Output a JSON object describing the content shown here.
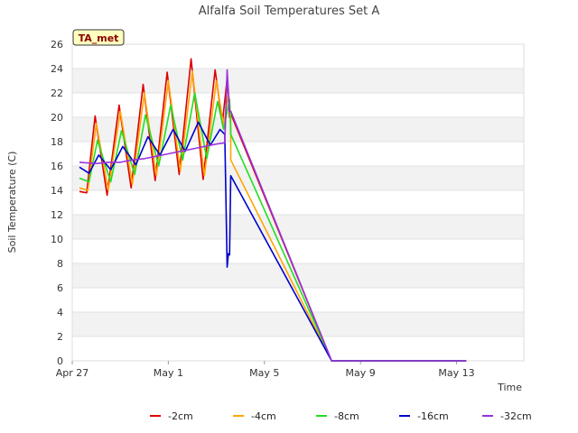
{
  "chart_data": {
    "type": "line",
    "title": "Alfalfa Soil Temperatures Set A",
    "xlabel": "Time",
    "ylabel": "Soil Temperature (C)",
    "badge": "TA_met",
    "ylim": [
      0,
      26
    ],
    "xlim": [
      0,
      18.8
    ],
    "yticks": [
      0,
      2,
      4,
      6,
      8,
      10,
      12,
      14,
      16,
      18,
      20,
      22,
      24,
      26
    ],
    "xticks": [
      {
        "value": 0,
        "label": "Apr 27"
      },
      {
        "value": 4,
        "label": "May 1"
      },
      {
        "value": 8,
        "label": "May 5"
      },
      {
        "value": 12,
        "label": "May 9"
      },
      {
        "value": 16,
        "label": "May 13"
      }
    ],
    "colors": {
      "-2cm": "#dd0000",
      "-4cm": "#ffa500",
      "-8cm": "#22dd22",
      "-16cm": "#0000cc",
      "-32cm": "#9933dd"
    },
    "series": [
      {
        "name": "-2cm",
        "x": [
          0.3,
          0.6,
          0.95,
          1.45,
          1.95,
          2.45,
          2.95,
          3.45,
          3.95,
          4.45,
          4.95,
          5.45,
          5.95,
          6.25,
          6.45,
          6.55,
          6.6,
          6.6,
          10.8,
          16.4
        ],
        "y": [
          13.9,
          13.8,
          20.1,
          13.6,
          21.0,
          14.2,
          22.7,
          14.8,
          23.7,
          15.3,
          24.8,
          14.9,
          23.9,
          19.5,
          23.2,
          20.0,
          20.5,
          20.3,
          0,
          0
        ]
      },
      {
        "name": "-4cm",
        "x": [
          0.3,
          0.65,
          1.0,
          1.5,
          2.0,
          2.5,
          3.0,
          3.5,
          4.0,
          4.5,
          5.0,
          5.5,
          6.0,
          6.3,
          6.5,
          6.6,
          6.6,
          10.8,
          16.4
        ],
        "y": [
          14.2,
          14.0,
          19.5,
          14.0,
          20.5,
          14.5,
          22.0,
          15.2,
          23.0,
          15.6,
          23.8,
          15.2,
          23.0,
          19.3,
          22.0,
          20.0,
          16.5,
          0,
          0
        ]
      },
      {
        "name": "-8cm",
        "x": [
          0.3,
          0.7,
          1.05,
          1.6,
          2.05,
          2.6,
          3.05,
          3.6,
          4.1,
          4.6,
          5.1,
          5.6,
          6.05,
          6.3,
          6.55,
          6.6,
          6.6,
          10.8,
          16.4
        ],
        "y": [
          15.0,
          14.7,
          18.1,
          14.7,
          18.9,
          15.3,
          20.2,
          16.0,
          21.0,
          16.5,
          22.0,
          16.6,
          21.3,
          19.0,
          21.5,
          18.8,
          18.6,
          0,
          0
        ]
      },
      {
        "name": "-16cm",
        "x": [
          0.3,
          0.7,
          1.1,
          1.6,
          2.1,
          2.65,
          3.15,
          3.65,
          4.2,
          4.7,
          5.25,
          5.75,
          6.15,
          6.35,
          6.45,
          6.5,
          6.55,
          6.6,
          6.6,
          10.8,
          16.4
        ],
        "y": [
          15.9,
          15.4,
          16.9,
          15.7,
          17.6,
          16.1,
          18.4,
          16.9,
          19.0,
          17.2,
          19.6,
          17.7,
          19.0,
          18.6,
          7.7,
          8.8,
          8.7,
          15.2,
          15.2,
          0,
          0
        ]
      },
      {
        "name": "-32cm",
        "x": [
          0.3,
          1.0,
          1.5,
          2.0,
          2.5,
          3.0,
          3.5,
          4.0,
          4.5,
          5.0,
          5.5,
          6.0,
          6.35,
          6.45,
          6.55,
          6.6,
          10.8,
          16.4
        ],
        "y": [
          16.3,
          16.2,
          16.3,
          16.3,
          16.5,
          16.6,
          16.8,
          17.0,
          17.2,
          17.4,
          17.6,
          17.8,
          17.9,
          23.9,
          20.5,
          20.5,
          0,
          0
        ]
      }
    ],
    "legend_position": "bottom"
  }
}
